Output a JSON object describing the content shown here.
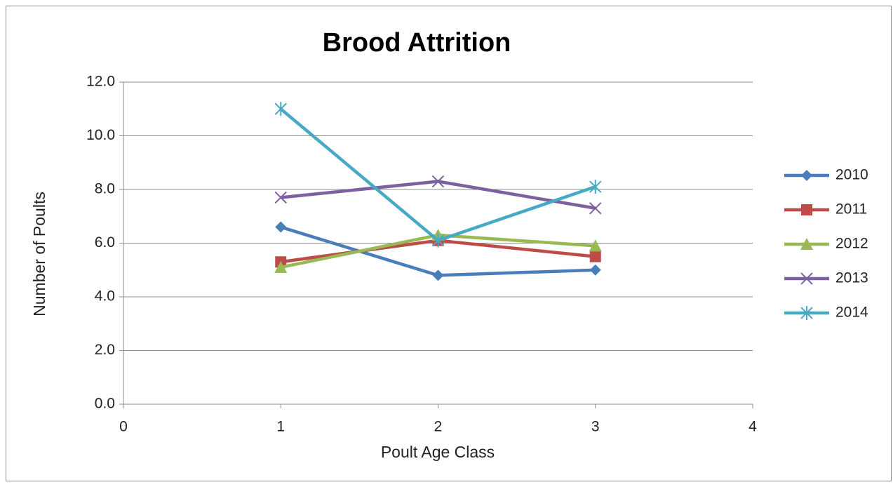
{
  "chart_data": {
    "type": "line",
    "title": "Brood Attrition",
    "xlabel": "Poult Age Class",
    "ylabel": "Number of Poults",
    "xlim": [
      0,
      4
    ],
    "xticks": [
      0,
      1,
      2,
      3,
      4
    ],
    "ylim": [
      0,
      12
    ],
    "yticks": [
      {
        "value": 0,
        "label": "0.0"
      },
      {
        "value": 2,
        "label": "2.0"
      },
      {
        "value": 4,
        "label": "4.0"
      },
      {
        "value": 6,
        "label": "6.0"
      },
      {
        "value": 8,
        "label": "8.0"
      },
      {
        "value": 10,
        "label": "10.0"
      },
      {
        "value": 12,
        "label": "12.0"
      }
    ],
    "grid": true,
    "legend": "right",
    "x": [
      1,
      2,
      3
    ],
    "series": [
      {
        "name": "2010",
        "color": "#4a7ebb",
        "marker": "diamond",
        "values": [
          6.6,
          4.8,
          5.0
        ]
      },
      {
        "name": "2011",
        "color": "#be4b48",
        "marker": "square",
        "values": [
          5.3,
          6.1,
          5.5
        ]
      },
      {
        "name": "2012",
        "color": "#98b954",
        "marker": "triangle",
        "values": [
          5.1,
          6.3,
          5.9
        ]
      },
      {
        "name": "2013",
        "color": "#7d60a0",
        "marker": "x",
        "values": [
          7.7,
          8.3,
          7.3
        ]
      },
      {
        "name": "2014",
        "color": "#46aac5",
        "marker": "star",
        "values": [
          11.0,
          6.1,
          8.1
        ]
      }
    ]
  }
}
